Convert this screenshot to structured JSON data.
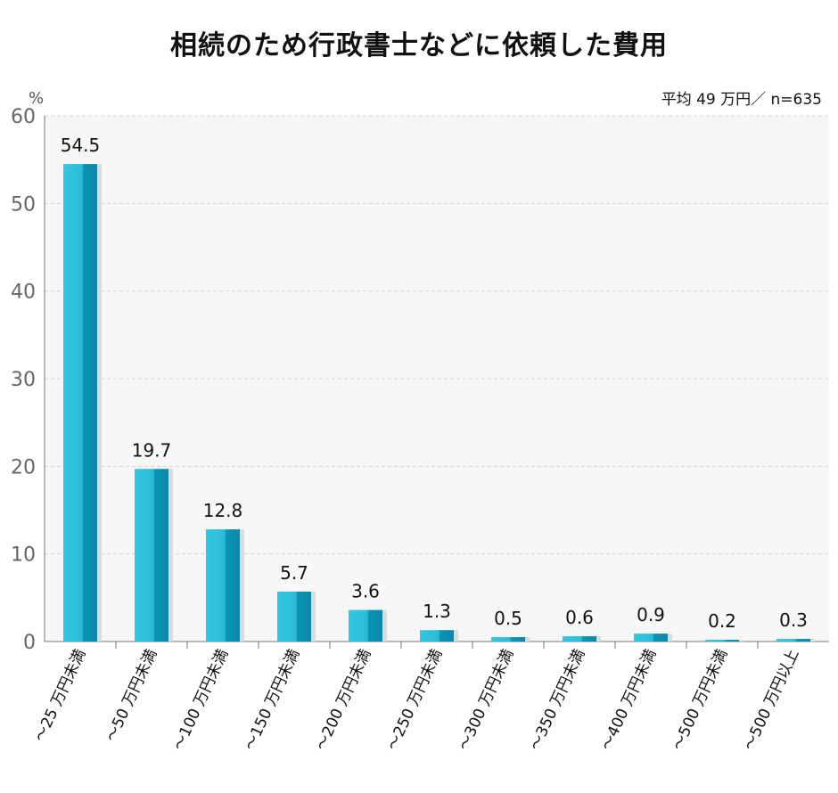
{
  "chart_data": {
    "type": "bar",
    "title": "相続のため行政書士などに依頼した費用",
    "note": "平均 49 万円／ n=635",
    "ylabel": "%",
    "ylim": [
      0,
      60
    ],
    "yticks": [
      0,
      10,
      20,
      30,
      40,
      50,
      60
    ],
    "grid": true,
    "categories": [
      "～25 万円未満",
      "～50 万円未満",
      "～100 万円未満",
      "～150 万円未満",
      "～200 万円未満",
      "～250 万円未満",
      "～300 万円未満",
      "～350 万円未満",
      "～400 万円未満",
      "～500 万円未満",
      "～500 万円以上"
    ],
    "values": [
      54.5,
      19.7,
      12.8,
      5.7,
      3.6,
      1.3,
      0.5,
      0.6,
      0.9,
      0.2,
      0.3
    ],
    "value_labels": [
      "54.5",
      "19.7",
      "12.8",
      "5.7",
      "3.6",
      "1.3",
      "0.5",
      "0.6",
      "0.9",
      "0.2",
      "0.3"
    ],
    "colors": {
      "bar_light": "#35c6e1",
      "bar_dark": "#0a8fb0",
      "bar_shadow": "#dcdcdc",
      "plot_bg": "#f7f7f7",
      "grid": "#d0d0d0"
    }
  }
}
